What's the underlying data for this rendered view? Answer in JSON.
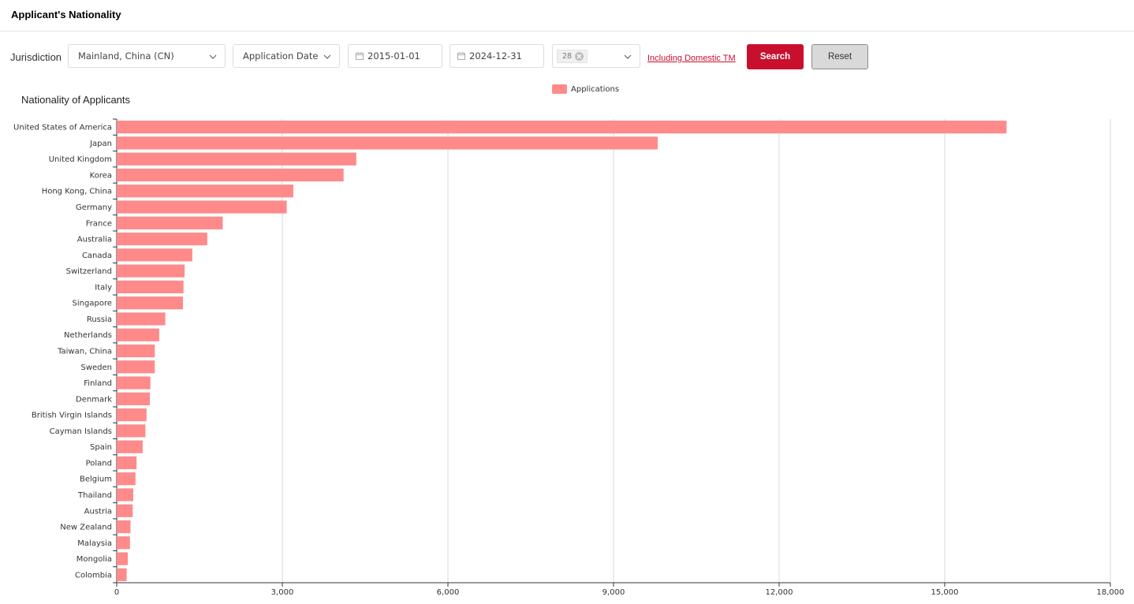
{
  "header": {
    "title": "Applicant's Nationality"
  },
  "filters": {
    "jurisdiction_label": "Jurisdiction",
    "jurisdiction_value": "Mainland, China (CN)",
    "date_type": "Application Date",
    "start_date": "2015-01-01",
    "end_date": "2024-12-31",
    "count_tag": "28",
    "domestic_link": "Including Domestic TM",
    "search_label": "Search",
    "reset_label": "Reset"
  },
  "colors": {
    "accent": "#c8102e",
    "bar": "#ff8a8a",
    "grid": "#d9d9d9"
  },
  "chart_data": {
    "type": "bar",
    "orientation": "horizontal",
    "title": "Nationality of Applicants",
    "legend": {
      "label": "Applications",
      "position": "top-center"
    },
    "categories": [
      "United States of America",
      "Japan",
      "United Kingdom",
      "Korea",
      "Hong Kong, China",
      "Germany",
      "France",
      "Australia",
      "Canada",
      "Switzerland",
      "Italy",
      "Singapore",
      "Russia",
      "Netherlands",
      "Taiwan, China",
      "Sweden",
      "Finland",
      "Denmark",
      "British Virgin Islands",
      "Cayman Islands",
      "Spain",
      "Poland",
      "Belgium",
      "Thailand",
      "Austria",
      "New Zealand",
      "Malaysia",
      "Mongolia",
      "Colombia"
    ],
    "series": [
      {
        "name": "Applications",
        "values": [
          16120,
          9800,
          4340,
          4110,
          3200,
          3080,
          1920,
          1640,
          1370,
          1230,
          1210,
          1200,
          880,
          770,
          690,
          690,
          610,
          600,
          540,
          520,
          470,
          360,
          340,
          300,
          290,
          250,
          240,
          200,
          180
        ]
      }
    ],
    "xlim": [
      0,
      18000
    ],
    "xticks": [
      "0",
      "3,000",
      "6,000",
      "9,000",
      "12,000",
      "15,000",
      "18,000"
    ],
    "grid": "vertical"
  }
}
